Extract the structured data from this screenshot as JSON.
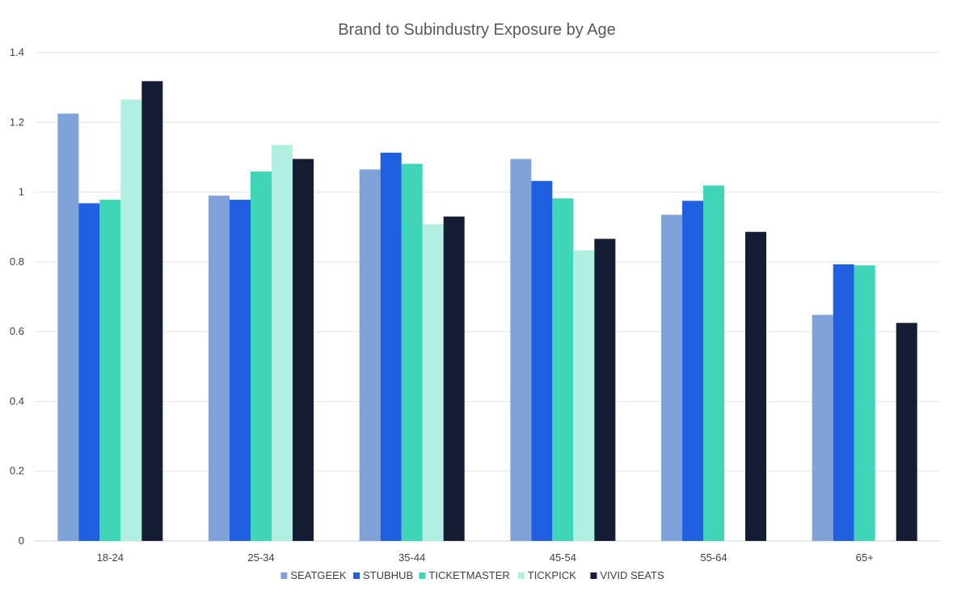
{
  "chart_data": {
    "type": "bar",
    "title": "Brand to Subindustry Exposure by Age",
    "xlabel": "",
    "ylabel": "",
    "ylim": [
      0,
      1.4
    ],
    "yticks": [
      "0",
      "0.2",
      "0.4",
      "0.6",
      "0.8",
      "1",
      "1.2",
      "1.4"
    ],
    "grid": true,
    "legend_position": "bottom",
    "categories": [
      "18-24",
      "25-34",
      "35-44",
      "45-54",
      "55-64",
      "65+"
    ],
    "series": [
      {
        "name": "SEATGEEK",
        "color": "#7fa3d8",
        "values": [
          1.225,
          0.99,
          1.065,
          1.095,
          0.935,
          0.648
        ]
      },
      {
        "name": "STUBHUB",
        "color": "#1f5fe0",
        "values": [
          0.968,
          0.978,
          1.113,
          1.032,
          0.975,
          0.793
        ]
      },
      {
        "name": "TICKETMASTER",
        "color": "#3fd6b8",
        "values": [
          0.978,
          1.059,
          1.081,
          0.982,
          1.019,
          0.79
        ]
      },
      {
        "name": "TICKPICK",
        "color": "#b2efe3",
        "values": [
          1.265,
          1.135,
          0.908,
          0.833,
          null,
          null
        ]
      },
      {
        "name": "VIVID SEATS",
        "color": "#141d33",
        "values": [
          1.318,
          1.095,
          0.93,
          0.866,
          0.886,
          0.625
        ]
      }
    ]
  }
}
